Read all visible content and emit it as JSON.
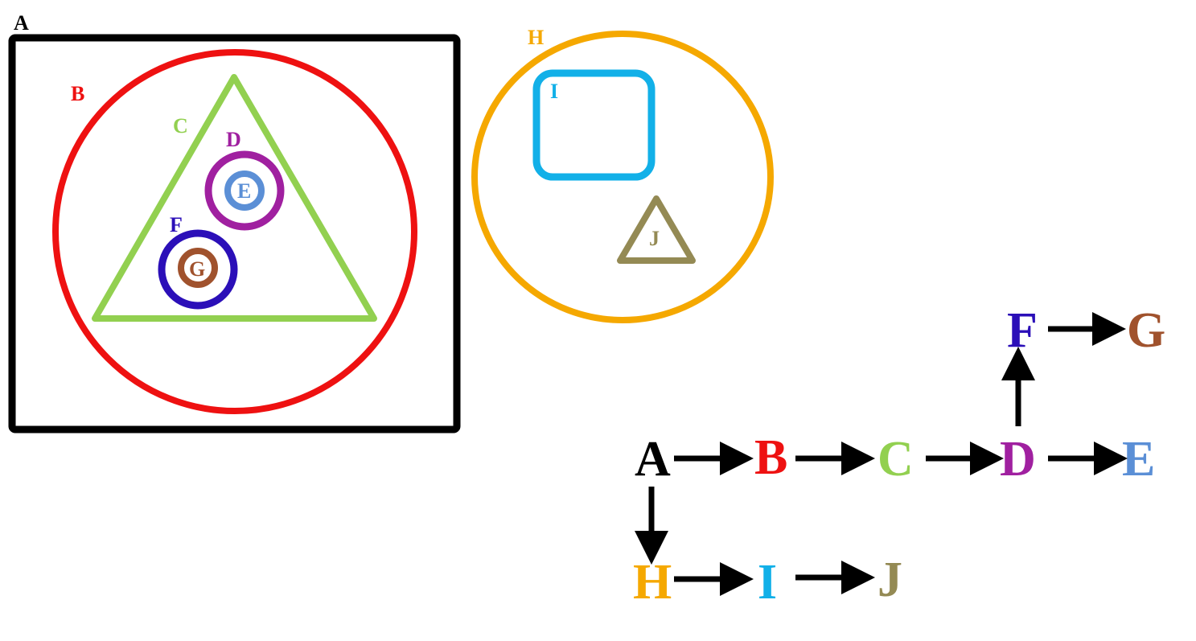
{
  "nesting": {
    "A": {
      "label": "A",
      "color": "#000000",
      "shape": "rectangle"
    },
    "B": {
      "label": "B",
      "color": "#ee1111",
      "shape": "circle"
    },
    "C": {
      "label": "C",
      "color": "#92d050",
      "shape": "triangle"
    },
    "D": {
      "label": "D",
      "color": "#a020a0",
      "shape": "circle"
    },
    "E": {
      "label": "E",
      "color": "#5b8fd6",
      "shape": "circle"
    },
    "F": {
      "label": "F",
      "color": "#2b0fb8",
      "shape": "circle"
    },
    "G": {
      "label": "G",
      "color": "#a0522d",
      "shape": "circle"
    },
    "H": {
      "label": "H",
      "color": "#f5a800",
      "shape": "circle"
    },
    "I": {
      "label": "I",
      "color": "#12b0e8",
      "shape": "rounded-rectangle"
    },
    "J": {
      "label": "J",
      "color": "#948a54",
      "shape": "triangle"
    }
  },
  "tree": {
    "nodes": [
      {
        "id": "A",
        "label": "A",
        "color": "#000000"
      },
      {
        "id": "B",
        "label": "B",
        "color": "#ee1111"
      },
      {
        "id": "C",
        "label": "C",
        "color": "#92d050"
      },
      {
        "id": "D",
        "label": "D",
        "color": "#a020a0"
      },
      {
        "id": "E",
        "label": "E",
        "color": "#5b8fd6"
      },
      {
        "id": "F",
        "label": "F",
        "color": "#2b0fb8"
      },
      {
        "id": "G",
        "label": "G",
        "color": "#a0522d"
      },
      {
        "id": "H",
        "label": "H",
        "color": "#f5a800"
      },
      {
        "id": "I",
        "label": "I",
        "color": "#12b0e8"
      },
      {
        "id": "J",
        "label": "J",
        "color": "#948a54"
      }
    ],
    "edges": [
      [
        "A",
        "B"
      ],
      [
        "B",
        "C"
      ],
      [
        "C",
        "D"
      ],
      [
        "D",
        "E"
      ],
      [
        "D",
        "F"
      ],
      [
        "F",
        "G"
      ],
      [
        "A",
        "H"
      ],
      [
        "H",
        "I"
      ],
      [
        "I",
        "J"
      ]
    ]
  }
}
